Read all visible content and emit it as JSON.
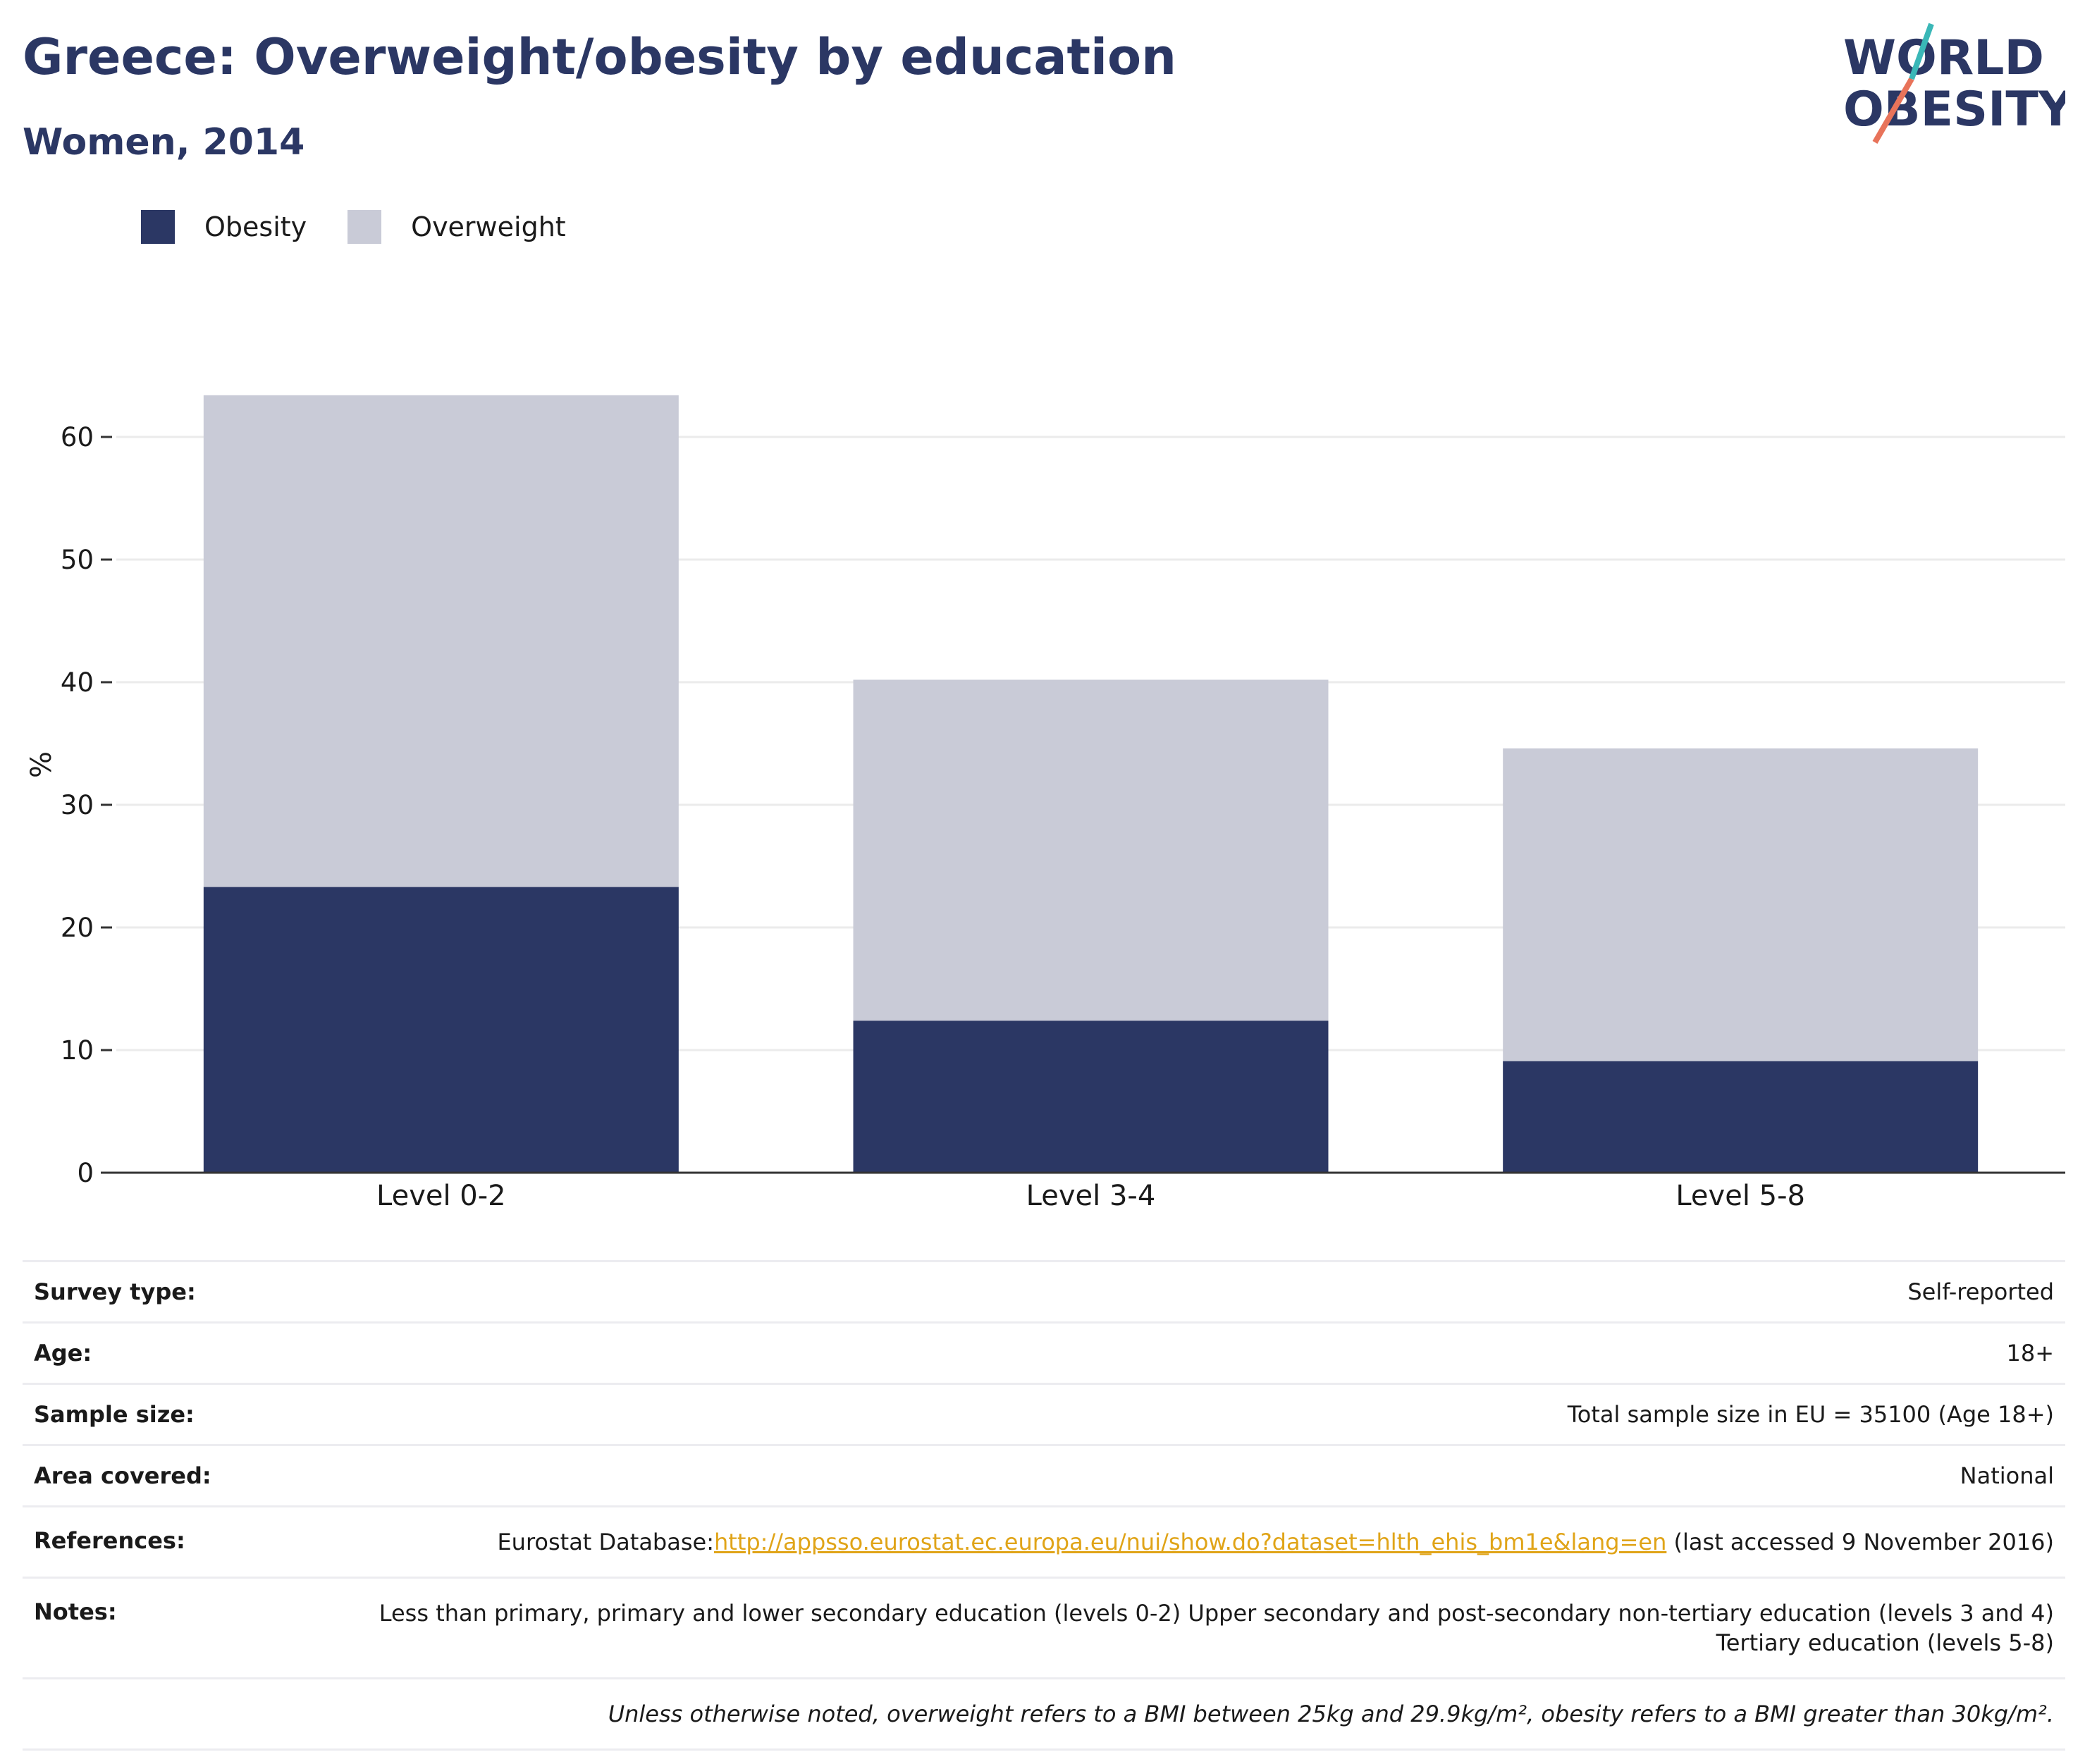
{
  "header": {
    "title": "Greece: Overweight/obesity by education",
    "subtitle": "Women, 2014"
  },
  "logo": {
    "line1": "WORLD",
    "line2": "OBESITY"
  },
  "legend": [
    {
      "label": "Obesity",
      "color": "#2b3764"
    },
    {
      "label": "Overweight",
      "color": "#c9cbd7"
    }
  ],
  "chart_data": {
    "type": "bar",
    "stacked": true,
    "categories": [
      "Level 0-2",
      "Level 3-4",
      "Level 5-8"
    ],
    "series": [
      {
        "name": "Obesity",
        "color": "#2b3764",
        "values": [
          23.3,
          12.4,
          9.1
        ]
      },
      {
        "name": "Overweight",
        "color": "#c9cbd7",
        "values": [
          40.1,
          27.8,
          25.5
        ]
      }
    ],
    "ylabel": "%",
    "ylim": [
      0,
      65
    ],
    "yticks": [
      0,
      10,
      20,
      30,
      40,
      50,
      60
    ],
    "grid": true,
    "legend_position": "top-left"
  },
  "info": {
    "rows": [
      {
        "label": "Survey type:",
        "value": "Self-reported"
      },
      {
        "label": "Age:",
        "value": "18+"
      },
      {
        "label": "Sample size:",
        "value": "Total sample size in EU = 35100 (Age 18+)"
      },
      {
        "label": "Area covered:",
        "value": "National"
      }
    ],
    "references": {
      "label": "References:",
      "prefix": "Eurostat Database:",
      "link": "http://appsso.eurostat.ec.europa.eu/nui/show.do?dataset=hlth_ehis_bm1e&lang=en",
      "suffix": " (last accessed 9 November 2016)"
    },
    "notes": {
      "label": "Notes:",
      "value": "Less than primary, primary and lower secondary education (levels 0-2) Upper secondary and post-secondary non-tertiary education (levels 3 and 4) Tertiary education (levels 5-8)"
    },
    "footnote": "Unless otherwise noted, overweight refers to a BMI between 25kg and 29.9kg/m², obesity refers to a BMI greater than 30kg/m²."
  }
}
